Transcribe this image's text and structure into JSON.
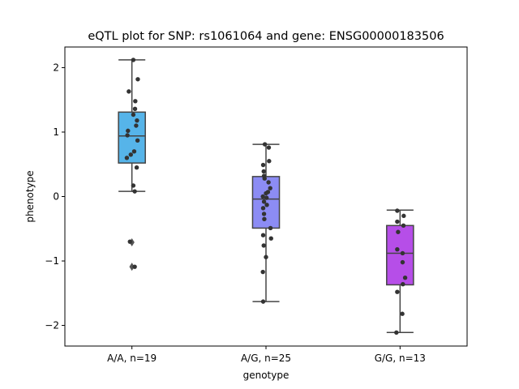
{
  "chart_data": {
    "type": "box",
    "title": "eQTL plot for SNP: rs1061064 and gene: ENSG00000183506",
    "xlabel": "genotype",
    "ylabel": "phenotype",
    "ylim": [
      -2.32,
      2.32
    ],
    "yticks": [
      -2,
      -1,
      0,
      1,
      2
    ],
    "yticklabels": [
      "−2",
      "−1",
      "0",
      "1",
      "2"
    ],
    "categories": [
      "A/A, n=19",
      "A/G, n=25",
      "G/G, n=13"
    ],
    "colors": [
      "#56b4e9",
      "#8c8cf4",
      "#b64ee8"
    ],
    "boxes": [
      {
        "q1": 0.52,
        "median": 0.94,
        "q3": 1.31,
        "whisker_low": 0.08,
        "whisker_high": 2.12,
        "outliers": [
          -0.71,
          -1.09
        ]
      },
      {
        "q1": -0.49,
        "median": -0.04,
        "q3": 0.31,
        "whisker_low": -1.63,
        "whisker_high": 0.81,
        "outliers": []
      },
      {
        "q1": -1.37,
        "median": -0.88,
        "q3": -0.45,
        "whisker_low": -2.11,
        "whisker_high": -0.21,
        "outliers": []
      }
    ],
    "points": [
      [
        [
          0.05,
          2.12
        ],
        [
          0.21,
          1.82
        ],
        [
          -0.11,
          1.63
        ],
        [
          0.12,
          1.48
        ],
        [
          0.11,
          1.36
        ],
        [
          0.05,
          1.27
        ],
        [
          0.18,
          1.18
        ],
        [
          0.15,
          1.1
        ],
        [
          -0.14,
          1.02
        ],
        [
          -0.16,
          0.95
        ],
        [
          0.2,
          0.87
        ],
        [
          0.08,
          0.7
        ],
        [
          -0.04,
          0.65
        ],
        [
          -0.18,
          0.6
        ],
        [
          0.17,
          0.45
        ],
        [
          0.05,
          0.17
        ],
        [
          0.1,
          0.08
        ],
        [
          -0.07,
          -0.7
        ],
        [
          0.1,
          -1.09
        ]
      ],
      [
        [
          -0.04,
          0.81
        ],
        [
          0.1,
          0.76
        ],
        [
          0.11,
          0.55
        ],
        [
          -0.1,
          0.49
        ],
        [
          -0.08,
          0.39
        ],
        [
          -0.07,
          0.32
        ],
        [
          -0.05,
          0.28
        ],
        [
          0.09,
          0.22
        ],
        [
          0.15,
          0.13
        ],
        [
          0.07,
          0.07
        ],
        [
          0.0,
          0.05
        ],
        [
          -0.11,
          0.0
        ],
        [
          0.02,
          -0.02
        ],
        [
          -0.07,
          -0.08
        ],
        [
          0.03,
          -0.13
        ],
        [
          -0.1,
          -0.18
        ],
        [
          -0.07,
          -0.27
        ],
        [
          -0.06,
          -0.35
        ],
        [
          0.16,
          -0.49
        ],
        [
          -0.1,
          -0.6
        ],
        [
          0.18,
          -0.65
        ],
        [
          -0.08,
          -0.76
        ],
        [
          0.0,
          -0.94
        ],
        [
          -0.11,
          -1.17
        ],
        [
          -0.1,
          -1.63
        ]
      ],
      [
        [
          -0.1,
          -0.22
        ],
        [
          0.13,
          -0.3
        ],
        [
          -0.1,
          -0.39
        ],
        [
          0.12,
          -0.45
        ],
        [
          -0.07,
          -0.55
        ],
        [
          -0.1,
          -0.82
        ],
        [
          0.09,
          -0.88
        ],
        [
          0.09,
          -1.02
        ],
        [
          0.18,
          -1.26
        ],
        [
          0.1,
          -1.36
        ],
        [
          -0.1,
          -1.48
        ],
        [
          0.08,
          -1.82
        ],
        [
          -0.13,
          -2.11
        ]
      ]
    ]
  }
}
